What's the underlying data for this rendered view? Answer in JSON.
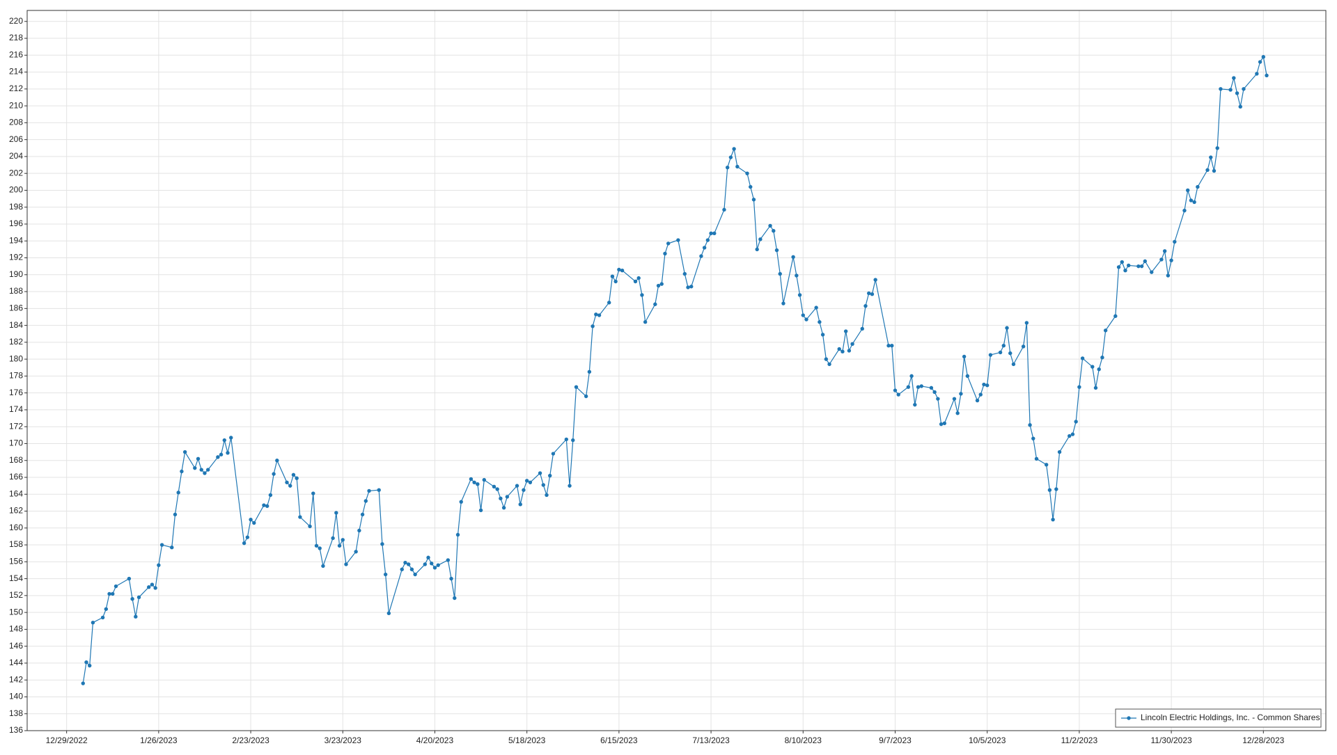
{
  "chart_data": {
    "type": "line",
    "x": [
      "1/3/2023",
      "1/4/2023",
      "1/5/2023",
      "1/6/2023",
      "1/9/2023",
      "1/10/2023",
      "1/11/2023",
      "1/12/2023",
      "1/13/2023",
      "1/17/2023",
      "1/18/2023",
      "1/19/2023",
      "1/20/2023",
      "1/23/2023",
      "1/24/2023",
      "1/25/2023",
      "1/26/2023",
      "1/27/2023",
      "1/30/2023",
      "1/31/2023",
      "2/1/2023",
      "2/2/2023",
      "2/3/2023",
      "2/6/2023",
      "2/7/2023",
      "2/8/2023",
      "2/9/2023",
      "2/10/2023",
      "2/13/2023",
      "2/14/2023",
      "2/15/2023",
      "2/16/2023",
      "2/17/2023",
      "2/21/2023",
      "2/22/2023",
      "2/23/2023",
      "2/24/2023",
      "2/27/2023",
      "2/28/2023",
      "3/1/2023",
      "3/2/2023",
      "3/3/2023",
      "3/6/2023",
      "3/7/2023",
      "3/8/2023",
      "3/9/2023",
      "3/10/2023",
      "3/13/2023",
      "3/14/2023",
      "3/15/2023",
      "3/16/2023",
      "3/17/2023",
      "3/20/2023",
      "3/21/2023",
      "3/22/2023",
      "3/23/2023",
      "3/24/2023",
      "3/27/2023",
      "3/28/2023",
      "3/29/2023",
      "3/30/2023",
      "3/31/2023",
      "4/3/2023",
      "4/4/2023",
      "4/5/2023",
      "4/6/2023",
      "4/10/2023",
      "4/11/2023",
      "4/12/2023",
      "4/13/2023",
      "4/14/2023",
      "4/17/2023",
      "4/18/2023",
      "4/19/2023",
      "4/20/2023",
      "4/21/2023",
      "4/24/2023",
      "4/25/2023",
      "4/26/2023",
      "4/27/2023",
      "4/28/2023",
      "5/1/2023",
      "5/2/2023",
      "5/3/2023",
      "5/4/2023",
      "5/5/2023",
      "5/8/2023",
      "5/9/2023",
      "5/10/2023",
      "5/11/2023",
      "5/12/2023",
      "5/15/2023",
      "5/16/2023",
      "5/17/2023",
      "5/18/2023",
      "5/19/2023",
      "5/22/2023",
      "5/23/2023",
      "5/24/2023",
      "5/25/2023",
      "5/26/2023",
      "5/30/2023",
      "5/31/2023",
      "6/1/2023",
      "6/2/2023",
      "6/5/2023",
      "6/6/2023",
      "6/7/2023",
      "6/8/2023",
      "6/9/2023",
      "6/12/2023",
      "6/13/2023",
      "6/14/2023",
      "6/15/2023",
      "6/16/2023",
      "6/20/2023",
      "6/21/2023",
      "6/22/2023",
      "6/23/2023",
      "6/26/2023",
      "6/27/2023",
      "6/28/2023",
      "6/29/2023",
      "6/30/2023",
      "7/3/2023",
      "7/5/2023",
      "7/6/2023",
      "7/7/2023",
      "7/10/2023",
      "7/11/2023",
      "7/12/2023",
      "7/13/2023",
      "7/14/2023",
      "7/17/2023",
      "7/18/2023",
      "7/19/2023",
      "7/20/2023",
      "7/21/2023",
      "7/24/2023",
      "7/25/2023",
      "7/26/2023",
      "7/27/2023",
      "7/28/2023",
      "7/31/2023",
      "8/1/2023",
      "8/2/2023",
      "8/3/2023",
      "8/4/2023",
      "8/7/2023",
      "8/8/2023",
      "8/9/2023",
      "8/10/2023",
      "8/11/2023",
      "8/14/2023",
      "8/15/2023",
      "8/16/2023",
      "8/17/2023",
      "8/18/2023",
      "8/21/2023",
      "8/22/2023",
      "8/23/2023",
      "8/24/2023",
      "8/25/2023",
      "8/28/2023",
      "8/29/2023",
      "8/30/2023",
      "8/31/2023",
      "9/1/2023",
      "9/5/2023",
      "9/6/2023",
      "9/7/2023",
      "9/8/2023",
      "9/11/2023",
      "9/12/2023",
      "9/13/2023",
      "9/14/2023",
      "9/15/2023",
      "9/18/2023",
      "9/19/2023",
      "9/20/2023",
      "9/21/2023",
      "9/22/2023",
      "9/25/2023",
      "9/26/2023",
      "9/27/2023",
      "9/28/2023",
      "9/29/2023",
      "10/2/2023",
      "10/3/2023",
      "10/4/2023",
      "10/5/2023",
      "10/6/2023",
      "10/9/2023",
      "10/10/2023",
      "10/11/2023",
      "10/12/2023",
      "10/13/2023",
      "10/16/2023",
      "10/17/2023",
      "10/18/2023",
      "10/19/2023",
      "10/20/2023",
      "10/23/2023",
      "10/24/2023",
      "10/25/2023",
      "10/26/2023",
      "10/27/2023",
      "10/30/2023",
      "10/31/2023",
      "11/1/2023",
      "11/2/2023",
      "11/3/2023",
      "11/6/2023",
      "11/7/2023",
      "11/8/2023",
      "11/9/2023",
      "11/10/2023",
      "11/13/2023",
      "11/14/2023",
      "11/15/2023",
      "11/16/2023",
      "11/17/2023",
      "11/20/2023",
      "11/21/2023",
      "11/22/2023",
      "11/24/2023",
      "11/27/2023",
      "11/28/2023",
      "11/29/2023",
      "11/30/2023",
      "12/1/2023",
      "12/4/2023",
      "12/5/2023",
      "12/6/2023",
      "12/7/2023",
      "12/8/2023",
      "12/11/2023",
      "12/12/2023",
      "12/13/2023",
      "12/14/2023",
      "12/15/2023",
      "12/18/2023",
      "12/19/2023",
      "12/20/2023",
      "12/21/2023",
      "12/22/2023",
      "12/26/2023",
      "12/27/2023",
      "12/28/2023",
      "12/29/2023"
    ],
    "series": [
      {
        "name": "Lincoln Electric Holdings, Inc. - Common Shares",
        "color": "#1f77b4",
        "values": [
          141.6,
          144.1,
          143.7,
          148.8,
          149.4,
          150.4,
          152.2,
          152.2,
          153.1,
          154.0,
          151.6,
          149.5,
          151.8,
          153.0,
          153.3,
          152.9,
          155.6,
          158.0,
          157.7,
          161.6,
          164.2,
          166.7,
          169.0,
          167.1,
          168.2,
          166.9,
          166.5,
          166.9,
          168.4,
          168.7,
          170.4,
          168.9,
          170.7,
          158.2,
          158.9,
          161.0,
          160.6,
          162.7,
          162.6,
          163.9,
          166.4,
          168.0,
          165.4,
          165.0,
          166.3,
          165.9,
          161.3,
          160.2,
          164.1,
          157.9,
          157.6,
          155.5,
          158.8,
          161.8,
          157.9,
          158.6,
          155.7,
          157.2,
          159.7,
          161.6,
          163.2,
          164.4,
          164.5,
          158.1,
          154.5,
          149.9,
          155.1,
          155.9,
          155.7,
          155.1,
          154.5,
          155.7,
          156.5,
          155.8,
          155.3,
          155.6,
          156.2,
          154.0,
          151.7,
          159.2,
          163.1,
          165.8,
          165.4,
          165.2,
          162.1,
          165.7,
          164.9,
          164.6,
          163.5,
          162.4,
          163.7,
          165.0,
          162.8,
          164.5,
          165.6,
          165.4,
          166.5,
          165.1,
          163.9,
          166.2,
          168.8,
          170.5,
          165.0,
          170.4,
          176.7,
          175.6,
          178.5,
          183.9,
          185.3,
          185.2,
          186.7,
          189.8,
          189.2,
          190.6,
          190.5,
          189.2,
          189.6,
          187.6,
          184.4,
          186.5,
          188.7,
          188.9,
          192.5,
          193.7,
          194.1,
          190.1,
          188.5,
          188.6,
          192.2,
          193.2,
          194.1,
          194.9,
          194.9,
          197.7,
          202.7,
          203.9,
          204.9,
          202.8,
          202.0,
          200.4,
          198.9,
          193.0,
          194.2,
          195.8,
          195.2,
          192.9,
          190.1,
          186.6,
          192.1,
          189.9,
          187.6,
          185.2,
          184.7,
          186.1,
          184.4,
          182.9,
          180.0,
          179.4,
          181.2,
          180.9,
          183.3,
          181.0,
          181.8,
          183.6,
          186.3,
          187.8,
          187.7,
          189.4,
          181.6,
          181.6,
          176.3,
          175.8,
          176.7,
          178.0,
          174.6,
          176.7,
          176.8,
          176.6,
          176.1,
          175.3,
          172.3,
          172.4,
          175.3,
          173.6,
          175.9,
          180.3,
          178.0,
          175.1,
          175.8,
          177.0,
          176.9,
          180.5,
          180.8,
          181.6,
          183.7,
          180.7,
          179.4,
          181.5,
          184.3,
          172.2,
          170.6,
          168.2,
          167.5,
          164.5,
          161.0,
          164.6,
          169.0,
          170.9,
          171.1,
          172.6,
          176.7,
          180.1,
          179.1,
          176.6,
          178.8,
          180.2,
          183.4,
          185.1,
          190.9,
          191.5,
          190.5,
          191.1,
          191.0,
          191.0,
          191.6,
          190.3,
          191.8,
          192.8,
          189.9,
          191.7,
          193.9,
          197.6,
          200.0,
          198.8,
          198.6,
          200.4,
          202.4,
          203.9,
          202.3,
          205.0,
          212.0,
          211.9,
          213.3,
          211.5,
          209.9,
          212.0,
          213.8,
          215.2,
          215.8,
          213.6
        ]
      }
    ],
    "xlim": [
      "12/17/2022",
      "1/16/2024"
    ],
    "xticks": [
      "12/29/2022",
      "1/26/2023",
      "2/23/2023",
      "3/23/2023",
      "4/20/2023",
      "5/18/2023",
      "6/15/2023",
      "7/13/2023",
      "8/10/2023",
      "9/7/2023",
      "10/5/2023",
      "11/2/2023",
      "11/30/2023",
      "12/28/2023"
    ],
    "ylim": [
      136,
      221.3
    ],
    "yticks": [
      136,
      138,
      140,
      142,
      144,
      146,
      148,
      150,
      152,
      154,
      156,
      158,
      160,
      162,
      164,
      166,
      168,
      170,
      172,
      174,
      176,
      178,
      180,
      182,
      184,
      186,
      188,
      190,
      192,
      194,
      196,
      198,
      200,
      202,
      204,
      206,
      208,
      210,
      212,
      214,
      216,
      218,
      220
    ],
    "grid": true,
    "legend": "lower right"
  }
}
